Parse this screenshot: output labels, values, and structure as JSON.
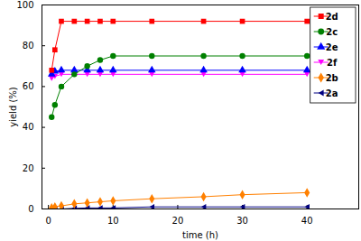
{
  "chart_data": {
    "type": "line",
    "x_label": "time (h)",
    "y_label": "yield (%)",
    "x": [
      0.5,
      1,
      2,
      4,
      6,
      8,
      10,
      16,
      24,
      30,
      40
    ],
    "xlim": [
      -1,
      48
    ],
    "xticks": [
      0,
      10,
      20,
      30,
      40
    ],
    "ylim": [
      0,
      100
    ],
    "yticks": [
      0,
      20,
      40,
      60,
      80,
      100
    ],
    "legend": "upper right",
    "series": [
      {
        "name": "2d",
        "color": "#ff0000",
        "marker": "square",
        "values": [
          68,
          78,
          92,
          92,
          92,
          92,
          92,
          92,
          92,
          92,
          92
        ]
      },
      {
        "name": "2c",
        "color": "#008000",
        "marker": "circle",
        "values": [
          45,
          51,
          60,
          66,
          70,
          73,
          75,
          75,
          75,
          75,
          75
        ]
      },
      {
        "name": "2e",
        "color": "#0000ff",
        "marker": "triangle-up",
        "values": [
          66,
          67.5,
          68,
          68,
          68,
          68,
          68,
          68,
          68,
          68,
          68
        ]
      },
      {
        "name": "2f",
        "color": "#ff00ff",
        "marker": "triangle-down",
        "values": [
          64,
          65,
          66,
          66,
          66,
          66,
          66,
          66,
          66,
          66,
          66
        ]
      },
      {
        "name": "2b",
        "color": "#ff8000",
        "marker": "diamond",
        "values": [
          0.5,
          1,
          1.5,
          2.5,
          3,
          3.5,
          4,
          5,
          6,
          7,
          8
        ]
      },
      {
        "name": "2a",
        "color": "#000080",
        "marker": "triangle-left",
        "values": [
          0,
          0,
          0,
          0.3,
          0.5,
          0.5,
          0.5,
          1,
          1,
          1,
          1
        ]
      }
    ]
  }
}
